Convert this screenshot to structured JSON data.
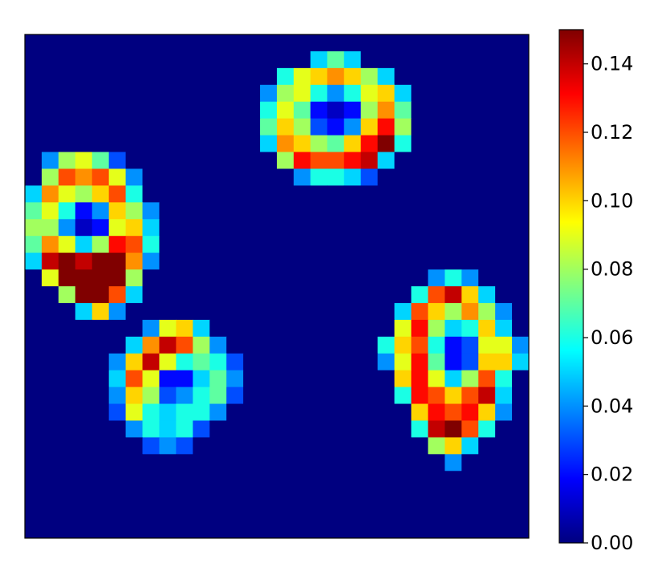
{
  "chart_data": {
    "type": "heatmap",
    "cmap": "jet",
    "vlim": [
      0,
      0.15
    ],
    "colorbar_ticks": [
      {
        "value": 0,
        "label": "0.00"
      },
      {
        "value": 0.02,
        "label": "0.02"
      },
      {
        "value": 0.04,
        "label": "0.04"
      },
      {
        "value": 0.06,
        "label": "0.06"
      },
      {
        "value": 0.08,
        "label": "0.08"
      },
      {
        "value": 0.1,
        "label": "0.10"
      },
      {
        "value": 0.12,
        "label": "0.12"
      },
      {
        "value": 0.14,
        "label": "0.14"
      }
    ],
    "z": [
      [
        0,
        0,
        0,
        0,
        0,
        0,
        0,
        0,
        0,
        0,
        0,
        0,
        0,
        0,
        0,
        0,
        0,
        0,
        0,
        0,
        0,
        0,
        0,
        0,
        0,
        0,
        0,
        0,
        0,
        0
      ],
      [
        0,
        0,
        0,
        0,
        0,
        0,
        0,
        0,
        0,
        0,
        0,
        0,
        0,
        0,
        0,
        0,
        0,
        0.05,
        0.07,
        0.05,
        0,
        0,
        0,
        0,
        0,
        0,
        0,
        0,
        0,
        0
      ],
      [
        0,
        0,
        0,
        0,
        0,
        0,
        0,
        0,
        0,
        0,
        0,
        0,
        0,
        0,
        0,
        0.06,
        0.09,
        0.1,
        0.11,
        0.1,
        0.08,
        0.05,
        0,
        0,
        0,
        0,
        0,
        0,
        0,
        0
      ],
      [
        0,
        0,
        0,
        0,
        0,
        0,
        0,
        0,
        0,
        0,
        0,
        0,
        0,
        0,
        0.04,
        0.08,
        0.09,
        0.06,
        0.04,
        0.06,
        0.09,
        0.1,
        0.05,
        0,
        0,
        0,
        0,
        0,
        0,
        0
      ],
      [
        0,
        0,
        0,
        0,
        0,
        0,
        0,
        0,
        0,
        0,
        0,
        0,
        0,
        0,
        0.06,
        0.09,
        0.07,
        0.02,
        0.01,
        0.02,
        0.08,
        0.11,
        0.07,
        0,
        0,
        0,
        0,
        0,
        0,
        0
      ],
      [
        0,
        0,
        0,
        0,
        0,
        0,
        0,
        0,
        0,
        0,
        0,
        0,
        0,
        0,
        0.07,
        0.1,
        0.08,
        0.03,
        0.02,
        0.04,
        0.1,
        0.13,
        0.08,
        0,
        0,
        0,
        0,
        0,
        0,
        0
      ],
      [
        0,
        0,
        0,
        0,
        0,
        0,
        0,
        0,
        0,
        0,
        0,
        0,
        0,
        0,
        0.05,
        0.11,
        0.1,
        0.08,
        0.07,
        0.1,
        0.13,
        0.15,
        0.06,
        0,
        0,
        0,
        0,
        0,
        0,
        0
      ],
      [
        0,
        0.04,
        0.08,
        0.09,
        0.07,
        0.03,
        0,
        0,
        0,
        0,
        0,
        0,
        0,
        0,
        0,
        0.08,
        0.13,
        0.12,
        0.12,
        0.13,
        0.14,
        0.05,
        0,
        0,
        0,
        0,
        0,
        0,
        0,
        0
      ],
      [
        0,
        0.08,
        0.12,
        0.11,
        0.12,
        0.09,
        0.04,
        0,
        0,
        0,
        0,
        0,
        0,
        0,
        0,
        0,
        0.04,
        0.06,
        0.06,
        0.05,
        0.03,
        0,
        0,
        0,
        0,
        0,
        0,
        0,
        0,
        0
      ],
      [
        0.05,
        0.11,
        0.09,
        0.08,
        0.1,
        0.12,
        0.06,
        0,
        0,
        0,
        0,
        0,
        0,
        0,
        0,
        0,
        0,
        0,
        0,
        0,
        0,
        0,
        0,
        0,
        0,
        0,
        0,
        0,
        0,
        0
      ],
      [
        0.07,
        0.09,
        0.06,
        0.02,
        0.04,
        0.1,
        0.08,
        0.04,
        0,
        0,
        0,
        0,
        0,
        0,
        0,
        0,
        0,
        0,
        0,
        0,
        0,
        0,
        0,
        0,
        0,
        0,
        0,
        0,
        0,
        0
      ],
      [
        0.08,
        0.08,
        0.04,
        0.01,
        0.02,
        0.09,
        0.1,
        0.05,
        0,
        0,
        0,
        0,
        0,
        0,
        0,
        0,
        0,
        0,
        0,
        0,
        0,
        0,
        0,
        0,
        0,
        0,
        0,
        0,
        0,
        0
      ],
      [
        0.07,
        0.11,
        0.09,
        0.05,
        0.08,
        0.13,
        0.12,
        0.06,
        0,
        0,
        0,
        0,
        0,
        0,
        0,
        0,
        0,
        0,
        0,
        0,
        0,
        0,
        0,
        0,
        0,
        0,
        0,
        0,
        0,
        0
      ],
      [
        0.05,
        0.14,
        0.15,
        0.14,
        0.15,
        0.15,
        0.11,
        0.04,
        0,
        0,
        0,
        0,
        0,
        0,
        0,
        0,
        0,
        0,
        0,
        0,
        0,
        0,
        0,
        0,
        0,
        0,
        0,
        0,
        0,
        0
      ],
      [
        0,
        0.09,
        0.15,
        0.15,
        0.15,
        0.15,
        0.08,
        0,
        0,
        0,
        0,
        0,
        0,
        0,
        0,
        0,
        0,
        0,
        0,
        0,
        0,
        0,
        0,
        0,
        0.04,
        0.06,
        0.04,
        0,
        0,
        0
      ],
      [
        0,
        0,
        0.08,
        0.15,
        0.15,
        0.12,
        0.05,
        0,
        0,
        0,
        0,
        0,
        0,
        0,
        0,
        0,
        0,
        0,
        0,
        0,
        0,
        0,
        0,
        0.06,
        0.12,
        0.14,
        0.1,
        0.05,
        0,
        0
      ],
      [
        0,
        0,
        0,
        0.05,
        0.1,
        0.04,
        0,
        0,
        0,
        0,
        0,
        0,
        0,
        0,
        0,
        0,
        0,
        0,
        0,
        0,
        0,
        0,
        0.05,
        0.12,
        0.1,
        0.08,
        0.11,
        0.08,
        0.04,
        0
      ],
      [
        0,
        0,
        0,
        0,
        0,
        0,
        0,
        0.04,
        0.09,
        0.1,
        0.05,
        0,
        0,
        0,
        0,
        0,
        0,
        0,
        0,
        0,
        0,
        0,
        0.09,
        0.13,
        0.08,
        0.05,
        0.06,
        0.1,
        0.05,
        0
      ],
      [
        0,
        0,
        0,
        0,
        0,
        0,
        0.05,
        0.11,
        0.14,
        0.12,
        0.08,
        0.04,
        0,
        0,
        0,
        0,
        0,
        0,
        0,
        0,
        0,
        0.06,
        0.1,
        0.12,
        0.06,
        0.02,
        0.03,
        0.09,
        0.09,
        0.04
      ],
      [
        0,
        0,
        0,
        0,
        0,
        0.04,
        0.1,
        0.14,
        0.09,
        0.06,
        0.07,
        0.06,
        0.03,
        0,
        0,
        0,
        0,
        0,
        0,
        0,
        0,
        0.04,
        0.09,
        0.13,
        0.07,
        0.02,
        0.03,
        0.1,
        0.1,
        0.05
      ],
      [
        0,
        0,
        0,
        0,
        0,
        0.05,
        0.12,
        0.09,
        0.02,
        0.02,
        0.05,
        0.07,
        0.04,
        0,
        0,
        0,
        0,
        0,
        0,
        0,
        0,
        0,
        0.1,
        0.13,
        0.09,
        0.05,
        0.08,
        0.12,
        0.06,
        0
      ],
      [
        0,
        0,
        0,
        0,
        0,
        0.04,
        0.1,
        0.08,
        0.03,
        0.04,
        0.06,
        0.07,
        0.03,
        0,
        0,
        0,
        0,
        0,
        0,
        0,
        0,
        0,
        0.06,
        0.13,
        0.12,
        0.1,
        0.12,
        0.14,
        0.05,
        0
      ],
      [
        0,
        0,
        0,
        0,
        0,
        0.03,
        0.09,
        0.06,
        0.05,
        0.06,
        0.06,
        0.04,
        0,
        0,
        0,
        0,
        0,
        0,
        0,
        0,
        0,
        0,
        0,
        0.1,
        0.13,
        0.12,
        0.13,
        0.1,
        0.04,
        0
      ],
      [
        0,
        0,
        0,
        0,
        0,
        0,
        0.04,
        0.06,
        0.05,
        0.06,
        0.03,
        0,
        0,
        0,
        0,
        0,
        0,
        0,
        0,
        0,
        0,
        0,
        0,
        0.06,
        0.14,
        0.15,
        0.12,
        0.06,
        0,
        0
      ],
      [
        0,
        0,
        0,
        0,
        0,
        0,
        0,
        0.03,
        0.04,
        0.03,
        0,
        0,
        0,
        0,
        0,
        0,
        0,
        0,
        0,
        0,
        0,
        0,
        0,
        0,
        0.08,
        0.1,
        0.05,
        0,
        0,
        0
      ],
      [
        0,
        0,
        0,
        0,
        0,
        0,
        0,
        0,
        0,
        0,
        0,
        0,
        0,
        0,
        0,
        0,
        0,
        0,
        0,
        0,
        0,
        0,
        0,
        0,
        0,
        0.04,
        0,
        0,
        0,
        0
      ],
      [
        0,
        0,
        0,
        0,
        0,
        0,
        0,
        0,
        0,
        0,
        0,
        0,
        0,
        0,
        0,
        0,
        0,
        0,
        0,
        0,
        0,
        0,
        0,
        0,
        0,
        0,
        0,
        0,
        0,
        0
      ],
      [
        0,
        0,
        0,
        0,
        0,
        0,
        0,
        0,
        0,
        0,
        0,
        0,
        0,
        0,
        0,
        0,
        0,
        0,
        0,
        0,
        0,
        0,
        0,
        0,
        0,
        0,
        0,
        0,
        0,
        0
      ],
      [
        0,
        0,
        0,
        0,
        0,
        0,
        0,
        0,
        0,
        0,
        0,
        0,
        0,
        0,
        0,
        0,
        0,
        0,
        0,
        0,
        0,
        0,
        0,
        0,
        0,
        0,
        0,
        0,
        0,
        0
      ],
      [
        0,
        0,
        0,
        0,
        0,
        0,
        0,
        0,
        0,
        0,
        0,
        0,
        0,
        0,
        0,
        0,
        0,
        0,
        0,
        0,
        0,
        0,
        0,
        0,
        0,
        0,
        0,
        0,
        0,
        0
      ]
    ]
  }
}
